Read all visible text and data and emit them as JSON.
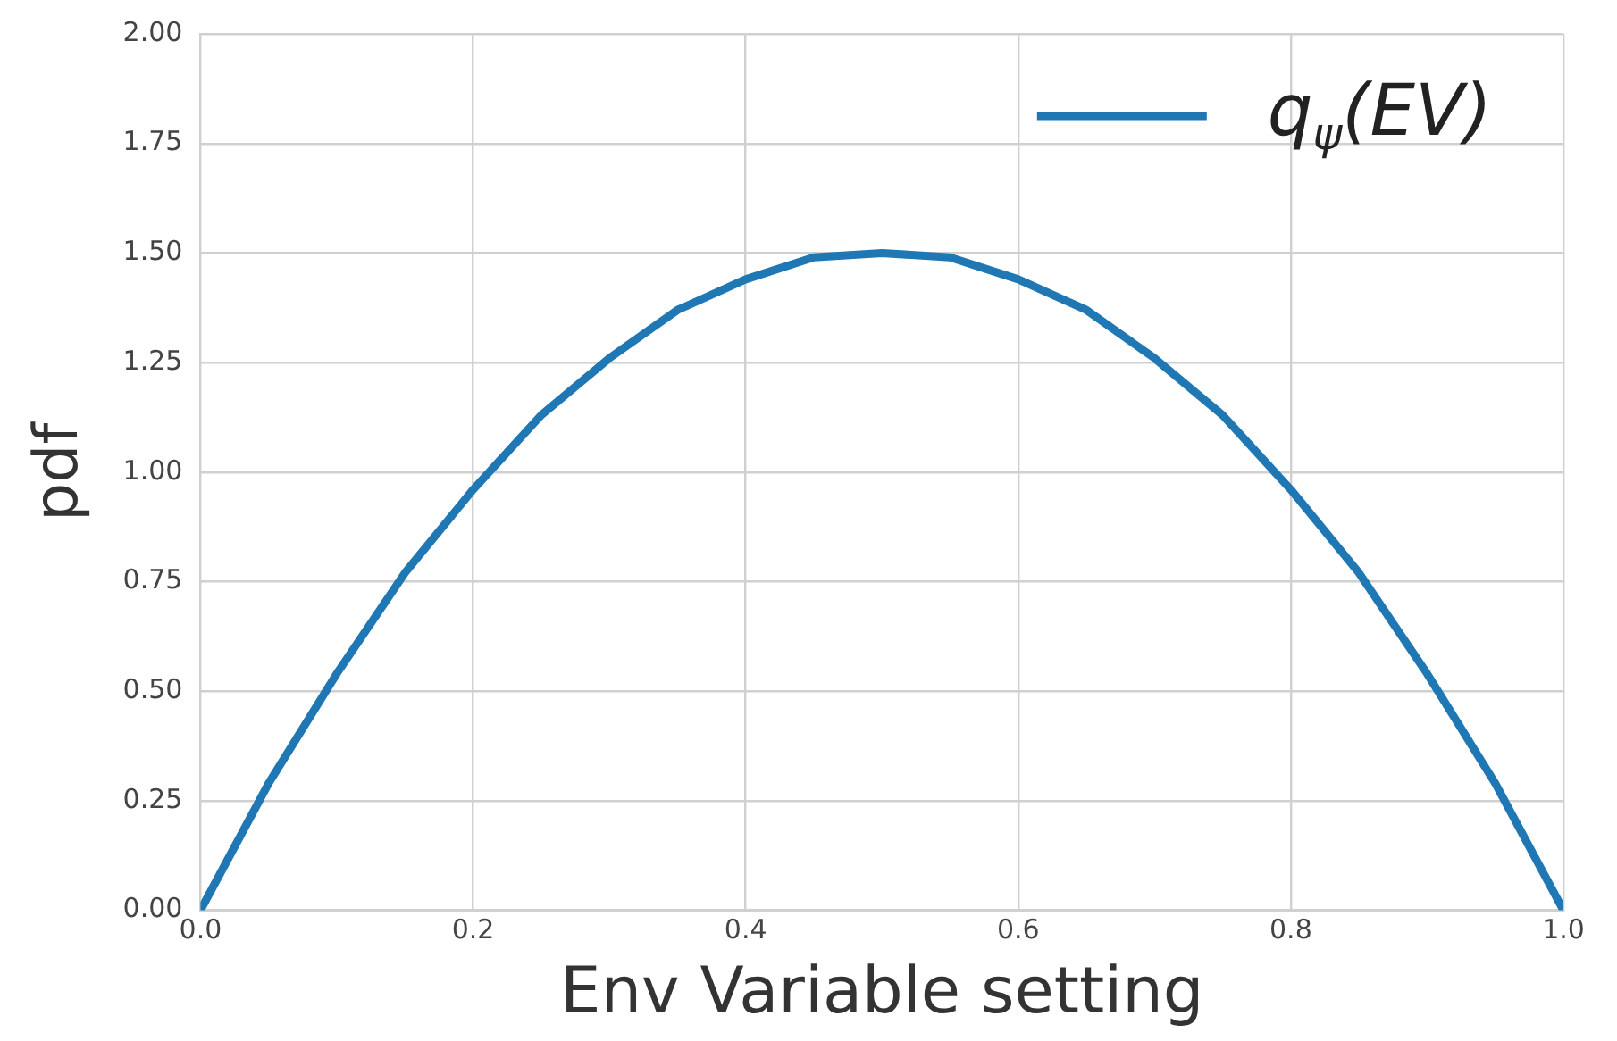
{
  "chart_data": {
    "type": "line",
    "xlabel": "Env Variable setting",
    "ylabel": "pdf",
    "x": [
      0,
      0.05,
      0.1,
      0.15,
      0.2,
      0.25,
      0.3,
      0.35,
      0.4,
      0.45,
      0.5,
      0.55,
      0.6,
      0.65,
      0.7,
      0.75,
      0.8,
      0.85,
      0.9,
      0.95,
      1
    ],
    "series": [
      {
        "name": "q$_{ψ}$(EV)",
        "color": "#1f77b4",
        "values": [
          0,
          0.29,
          0.54,
          0.77,
          0.96,
          1.13,
          1.26,
          1.37,
          1.44,
          1.49,
          1.5,
          1.49,
          1.44,
          1.37,
          1.26,
          1.13,
          0.96,
          0.77,
          0.54,
          0.29,
          0
        ]
      }
    ],
    "xlim": [
      0,
      1
    ],
    "ylim": [
      0,
      2
    ],
    "xticks": [
      {
        "value": 0,
        "label": "0.0"
      },
      {
        "value": 0.2,
        "label": "0.2"
      },
      {
        "value": 0.4,
        "label": "0.4"
      },
      {
        "value": 0.6,
        "label": "0.6"
      },
      {
        "value": 0.8,
        "label": "0.8"
      },
      {
        "value": 1,
        "label": "1.0"
      }
    ],
    "yticks": [
      {
        "value": 0,
        "label": "0.00"
      },
      {
        "value": 0.25,
        "label": "0.25"
      },
      {
        "value": 0.5,
        "label": "0.50"
      },
      {
        "value": 0.75,
        "label": "0.75"
      },
      {
        "value": 1,
        "label": "1.00"
      },
      {
        "value": 1.25,
        "label": "1.25"
      },
      {
        "value": 1.5,
        "label": "1.50"
      },
      {
        "value": 1.75,
        "label": "1.75"
      },
      {
        "value": 2,
        "label": "2.00"
      }
    ],
    "grid": true,
    "legend": "top right",
    "marker": "none",
    "line_style": "solid"
  }
}
